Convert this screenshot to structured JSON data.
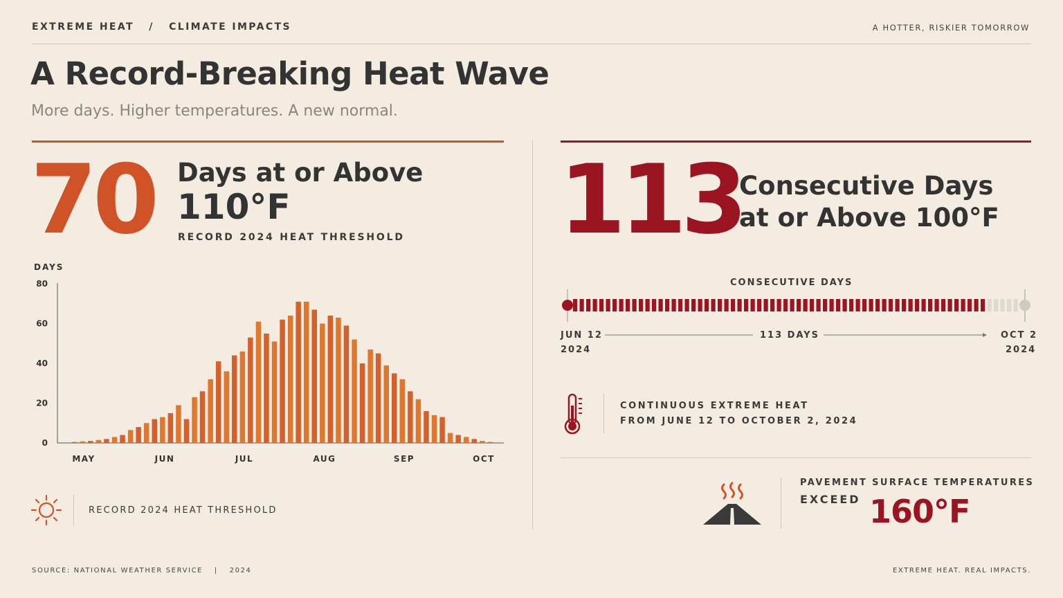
{
  "header": {
    "breadcrumb_left": "EXTREME HEAT",
    "breadcrumb_sep": "/",
    "breadcrumb_right": "CLIMATE IMPACTS",
    "tagline": "A HOTTER, RISKIER TOMORROW"
  },
  "title": "A Record-Breaking Heat Wave",
  "subtitle": "More days. Higher temperatures. A new normal.",
  "left": {
    "big_number": "70",
    "label_line1": "Days at or Above",
    "label_line2": "110°F",
    "caption": "RECORD 2024 HEAT THRESHOLD",
    "footer_label": "RECORD 2024 HEAT THRESHOLD",
    "accent": "#cf5326"
  },
  "right": {
    "big_number": "113",
    "label_line1": "Consecutive Days",
    "label_line2": "at or Above 100°F",
    "accent": "#9b1421",
    "timeline": {
      "label": "CONSECUTIVE DAYS",
      "start_line1": "JUN 12",
      "start_line2": "2024",
      "end_line1": "OCT 2",
      "end_line2": "2024",
      "span_label": "113 DAYS"
    },
    "thermo_line1": "CONTINUOUS EXTREME HEAT",
    "thermo_line2": "FROM JUNE 12 TO OCTOBER 2, 2024",
    "pavement_line1": "PAVEMENT SURFACE TEMPERATURES",
    "pavement_line2": "EXCEED",
    "pavement_temp": "160°F"
  },
  "footer": {
    "source": "SOURCE: NATIONAL WEATHER SERVICE",
    "sep": "|",
    "year": "2024",
    "tagline": "EXTREME HEAT. REAL IMPACTS."
  },
  "icons": {
    "sun": "sun-icon",
    "thermometer": "thermometer-icon",
    "road": "hot-road-icon"
  },
  "chart_data": {
    "type": "bar",
    "ylabel": "DAYS",
    "ylim": [
      0,
      80
    ],
    "yticks": [
      0,
      20,
      40,
      60,
      80
    ],
    "month_labels": [
      "MAY",
      "JUN",
      "JUL",
      "AUG",
      "SEP",
      "OCT"
    ],
    "values": [
      0.5,
      0.8,
      1,
      1.5,
      2,
      3,
      4,
      6.5,
      8,
      10,
      12,
      13,
      15,
      19,
      12,
      23,
      26,
      32,
      41,
      36,
      44,
      46,
      53,
      61,
      55,
      51,
      62,
      64,
      71,
      71,
      67,
      60,
      64,
      63,
      59,
      52,
      40,
      47,
      45,
      39,
      35,
      32,
      26,
      22,
      16,
      14,
      13,
      5,
      4,
      3,
      2,
      1,
      0.5
    ],
    "grid": false
  }
}
